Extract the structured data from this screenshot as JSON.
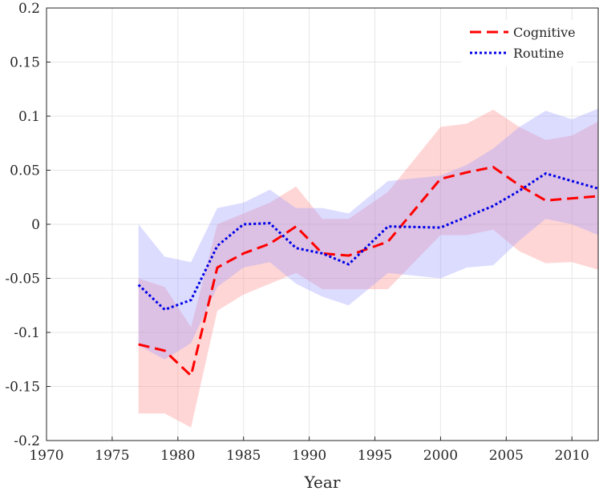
{
  "chart_data": {
    "type": "line",
    "title": "",
    "xlabel": "Year",
    "ylabel": "",
    "xlim": [
      1970,
      2012
    ],
    "ylim": [
      -0.2,
      0.2
    ],
    "xticks": [
      1970,
      1975,
      1980,
      1985,
      1990,
      1995,
      2000,
      2005,
      2010
    ],
    "yticks": [
      -0.2,
      -0.15,
      -0.1,
      -0.05,
      0,
      0.05,
      0.1,
      0.15,
      0.2
    ],
    "xtick_labels": [
      "1970",
      "1975",
      "1980",
      "1985",
      "1990",
      "1995",
      "2000",
      "2005",
      "2010"
    ],
    "ytick_labels": [
      "-0.2",
      "-0.15",
      "-0.1",
      "-0.05",
      "0",
      "0.05",
      "0.1",
      "0.15",
      "0.2"
    ],
    "grid": true,
    "legend_position": "top-right",
    "series": [
      {
        "name": "Cognitive",
        "color": "#ff0000",
        "band_color": "#ff8a8a",
        "line_style": "dashed",
        "x": [
          1977,
          1979,
          1981,
          1983,
          1985,
          1987,
          1989,
          1991,
          1993,
          1996,
          2000,
          2002,
          2004,
          2006,
          2008,
          2010,
          2012
        ],
        "y": [
          -0.111,
          -0.117,
          -0.14,
          -0.04,
          -0.027,
          -0.018,
          -0.002,
          -0.027,
          -0.029,
          -0.016,
          0.042,
          0.048,
          0.053,
          0.036,
          0.022,
          0.024,
          0.026
        ],
        "lower": [
          -0.175,
          -0.175,
          -0.188,
          -0.08,
          -0.065,
          -0.055,
          -0.045,
          -0.06,
          -0.06,
          -0.06,
          -0.01,
          -0.01,
          -0.005,
          -0.025,
          -0.036,
          -0.035,
          -0.042
        ],
        "upper": [
          -0.05,
          -0.058,
          -0.095,
          0.0,
          0.01,
          0.02,
          0.035,
          0.005,
          0.005,
          0.03,
          0.09,
          0.093,
          0.106,
          0.09,
          0.078,
          0.082,
          0.095
        ]
      },
      {
        "name": "Routine",
        "color": "#0000e6",
        "band_color": "#9b9bff",
        "line_style": "dotted",
        "x": [
          1977,
          1979,
          1981,
          1983,
          1985,
          1987,
          1989,
          1991,
          1993,
          1996,
          2000,
          2002,
          2004,
          2006,
          2008,
          2010,
          2012
        ],
        "y": [
          -0.056,
          -0.079,
          -0.07,
          -0.02,
          0.0,
          0.001,
          -0.022,
          -0.027,
          -0.037,
          -0.002,
          -0.003,
          0.007,
          0.017,
          0.031,
          0.047,
          0.04,
          0.033
        ],
        "lower": [
          -0.112,
          -0.125,
          -0.11,
          -0.058,
          -0.04,
          -0.035,
          -0.055,
          -0.067,
          -0.075,
          -0.045,
          -0.05,
          -0.04,
          -0.038,
          -0.015,
          0.005,
          0.0,
          -0.01
        ],
        "upper": [
          0.0,
          -0.03,
          -0.035,
          0.015,
          0.02,
          0.032,
          0.015,
          0.015,
          0.01,
          0.04,
          0.045,
          0.055,
          0.07,
          0.09,
          0.105,
          0.097,
          0.107
        ]
      }
    ]
  }
}
